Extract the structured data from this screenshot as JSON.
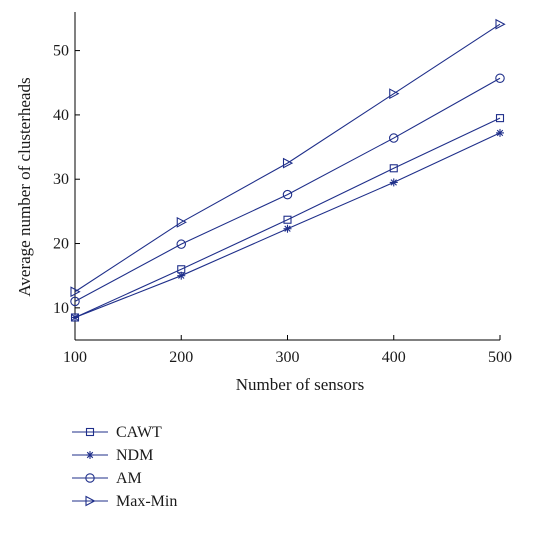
{
  "chart_data": {
    "type": "line",
    "title": "",
    "xlabel": "Number of sensors",
    "ylabel": "Average number of clusterheads",
    "x": [
      100,
      200,
      300,
      400,
      500
    ],
    "xlim": [
      100,
      500
    ],
    "ylim": [
      5,
      56
    ],
    "xticks": [
      100,
      200,
      300,
      400,
      500
    ],
    "yticks": [
      10,
      20,
      30,
      40,
      50
    ],
    "grid": false,
    "legend_position": "bottom-left",
    "line_color": "#1f2f8a",
    "series": [
      {
        "name": "CAWT",
        "marker": "square",
        "values": [
          8.5,
          16.0,
          23.7,
          31.7,
          39.5
        ]
      },
      {
        "name": "NDM",
        "marker": "asterisk",
        "values": [
          8.5,
          15.0,
          22.3,
          29.5,
          37.2
        ]
      },
      {
        "name": "AM",
        "marker": "circle",
        "values": [
          11.0,
          19.9,
          27.6,
          36.4,
          45.7
        ]
      },
      {
        "name": "Max-Min",
        "marker": "triangle-right",
        "values": [
          12.5,
          23.3,
          32.5,
          43.3,
          54.1
        ]
      }
    ]
  }
}
